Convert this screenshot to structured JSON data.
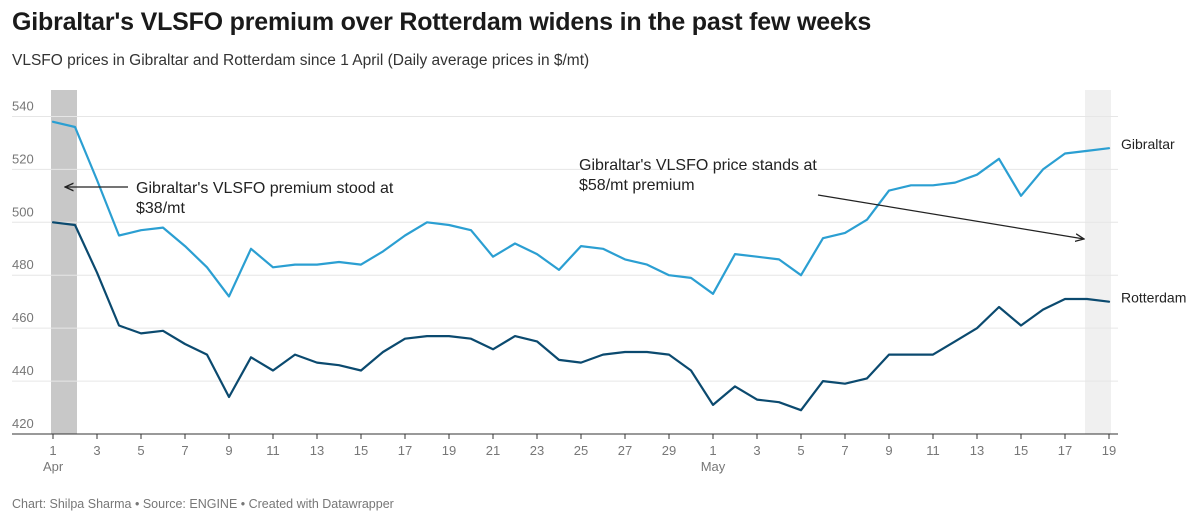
{
  "header": {
    "title": "Gibraltar's VLSFO premium over Rotterdam widens in the past few weeks",
    "subtitle": "VLSFO prices in Gibraltar and Rotterdam since 1 April (Daily average prices in $/mt)"
  },
  "footer": {
    "credit": "Chart: Shilpa Sharma • Source: ENGINE • Created with Datawrapper"
  },
  "colors": {
    "gibraltar": "#2b9fd2",
    "rotterdam": "#0b4a6f",
    "highlight_start": "#c8c8c8",
    "highlight_end": "#f0f0f0",
    "grid": "#e6e6e6"
  },
  "chart_data": {
    "type": "line",
    "x": [
      "Apr 1",
      "Apr 2",
      "Apr 3",
      "Apr 4",
      "Apr 5",
      "Apr 6",
      "Apr 7",
      "Apr 8",
      "Apr 9",
      "Apr 10",
      "Apr 11",
      "Apr 12",
      "Apr 13",
      "Apr 14",
      "Apr 15",
      "Apr 16",
      "Apr 17",
      "Apr 18",
      "Apr 19",
      "Apr 20",
      "Apr 21",
      "Apr 22",
      "Apr 23",
      "Apr 24",
      "Apr 25",
      "Apr 26",
      "Apr 27",
      "Apr 28",
      "Apr 29",
      "Apr 30",
      "May 1",
      "May 2",
      "May 3",
      "May 4",
      "May 5",
      "May 6",
      "May 7",
      "May 8",
      "May 9",
      "May 10",
      "May 11",
      "May 12",
      "May 13",
      "May 14",
      "May 15",
      "May 16",
      "May 17",
      "May 18",
      "May 19"
    ],
    "series": [
      {
        "name": "Gibraltar",
        "values": [
          538,
          536,
          516,
          495,
          497,
          498,
          491,
          483,
          472,
          490,
          483,
          484,
          484,
          485,
          484,
          489,
          495,
          500,
          499,
          497,
          487,
          492,
          488,
          482,
          491,
          490,
          486,
          484,
          480,
          479,
          473,
          488,
          487,
          486,
          480,
          494,
          496,
          501,
          512,
          514,
          514,
          515,
          518,
          524,
          510,
          520,
          526,
          527,
          528
        ]
      },
      {
        "name": "Rotterdam",
        "values": [
          500,
          499,
          481,
          461,
          458,
          459,
          454,
          450,
          434,
          449,
          444,
          450,
          447,
          446,
          444,
          451,
          456,
          457,
          457,
          456,
          452,
          457,
          455,
          448,
          447,
          450,
          451,
          451,
          450,
          444,
          431,
          438,
          433,
          432,
          429,
          440,
          439,
          441,
          450,
          450,
          450,
          455,
          460,
          468,
          461,
          467,
          471,
          471,
          470
        ]
      }
    ],
    "ylim": [
      420,
      550
    ],
    "yticks": [
      "420",
      "440",
      "460",
      "480",
      "500",
      "520",
      "540"
    ],
    "xticks": [
      {
        "label": "1",
        "index": 0,
        "month": "Apr"
      },
      {
        "label": "3",
        "index": 2
      },
      {
        "label": "5",
        "index": 4
      },
      {
        "label": "7",
        "index": 6
      },
      {
        "label": "9",
        "index": 8
      },
      {
        "label": "11",
        "index": 10
      },
      {
        "label": "13",
        "index": 12
      },
      {
        "label": "15",
        "index": 14
      },
      {
        "label": "17",
        "index": 16
      },
      {
        "label": "19",
        "index": 18
      },
      {
        "label": "21",
        "index": 20
      },
      {
        "label": "23",
        "index": 22
      },
      {
        "label": "25",
        "index": 24
      },
      {
        "label": "27",
        "index": 26
      },
      {
        "label": "29",
        "index": 28
      },
      {
        "label": "1",
        "index": 30,
        "month": "May"
      },
      {
        "label": "3",
        "index": 32
      },
      {
        "label": "5",
        "index": 34
      },
      {
        "label": "7",
        "index": 36
      },
      {
        "label": "9",
        "index": 38
      },
      {
        "label": "11",
        "index": 40
      },
      {
        "label": "13",
        "index": 42
      },
      {
        "label": "15",
        "index": 44
      },
      {
        "label": "17",
        "index": 46
      },
      {
        "label": "19",
        "index": 48
      }
    ],
    "highlights": [
      {
        "from": "Apr 1",
        "to": "Apr 2"
      },
      {
        "from": "May 18",
        "to": "May 19"
      }
    ],
    "annotations": [
      {
        "lines": [
          "Gibraltar's VLSFO premium stood at",
          "$38/mt"
        ]
      },
      {
        "lines": [
          "Gibraltar's VLSFO price stands at",
          "$58/mt premium"
        ]
      }
    ],
    "grid": true,
    "legend": "inline labels at line ends"
  }
}
